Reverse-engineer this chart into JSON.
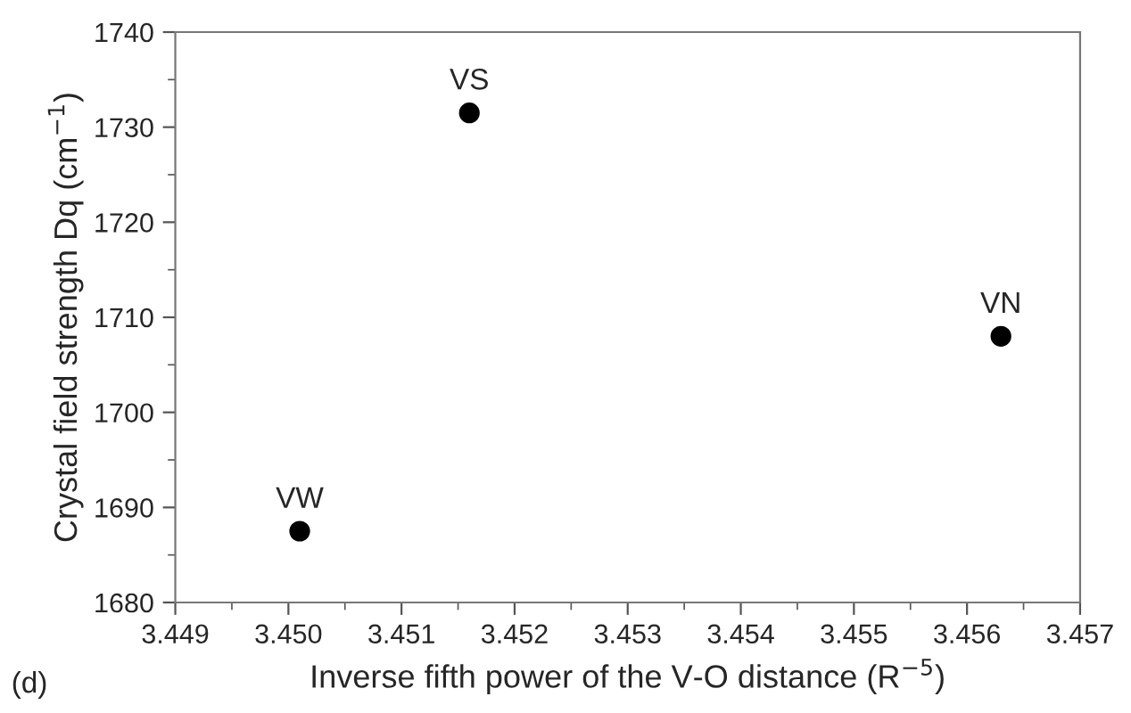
{
  "chart_data": {
    "type": "scatter",
    "xlabel": "Inverse fifth power of the V-O distance (R$^{−5}$)",
    "ylabel": "Crystal field strength Dq (cm$^{−1}$)",
    "x": [
      3.4501,
      3.4516,
      3.4563
    ],
    "series": [
      {
        "color": "#000000",
        "values": [
          1687.5,
          1731.5,
          1708
        ]
      }
    ],
    "marker": "circle",
    "xlim": [
      3.449,
      3.457
    ],
    "xticks": [
      3.449,
      {
        "value": 3.45,
        "label": "3.450"
      },
      3.451,
      3.452,
      3.453,
      3.454,
      3.455,
      3.456,
      3.457
    ],
    "ylim": [
      1680,
      1740
    ],
    "yticks": [
      1680,
      1690,
      1700,
      1710,
      1720,
      1730,
      1740
    ],
    "grid": false,
    "annotations": [
      {
        "text": "VW",
        "x": 3.4501,
        "y": 1687.5
      },
      {
        "text": "VS",
        "x": 3.4516,
        "y": 1731.5
      },
      {
        "text": "VN",
        "x": 3.4563,
        "y": 1708
      },
      "(d)"
    ]
  }
}
